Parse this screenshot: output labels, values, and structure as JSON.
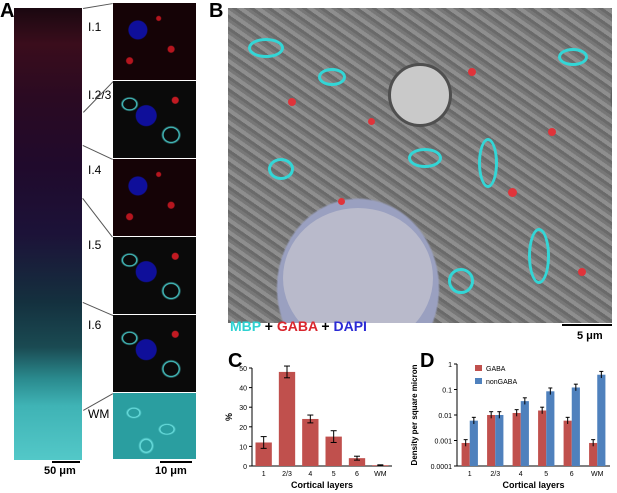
{
  "panels": {
    "A": {
      "letter": "A"
    },
    "B": {
      "letter": "B"
    },
    "C": {
      "letter": "C"
    },
    "D": {
      "letter": "D"
    }
  },
  "layers": [
    "I.1",
    "I.2/3",
    "I.4",
    "I.5",
    "I.6",
    "WM"
  ],
  "scale_bars": {
    "strip": "50 μm",
    "tiles": "10 μm",
    "panelB": "5 μm"
  },
  "stain_legend": {
    "mbp": "MBP",
    "plus1": " + ",
    "gaba": "GABA",
    "plus2": " + ",
    "dapi": "DAPI"
  },
  "colors": {
    "mbp": "#2fd1d1",
    "gaba": "#d9262e",
    "dapi": "#2a2ad4",
    "gaba_bar": "#c0504d",
    "nongaba_bar": "#4f81bd"
  },
  "chart_data": [
    {
      "type": "bar",
      "panel": "C",
      "categories": [
        "1",
        "2/3",
        "4",
        "5",
        "6",
        "WM"
      ],
      "values": [
        12,
        48,
        24,
        15,
        4,
        0.4
      ],
      "errors": [
        3,
        3,
        2,
        3,
        1,
        0.2
      ],
      "xlabel": "Cortical layers",
      "ylabel": "%",
      "ylim": [
        0,
        50
      ],
      "yticks": [
        0,
        10,
        20,
        30,
        40,
        50
      ],
      "grid": false,
      "color": "#c0504d"
    },
    {
      "type": "bar",
      "panel": "D",
      "categories": [
        "1",
        "2/3",
        "4",
        "5",
        "6",
        "WM"
      ],
      "series": [
        {
          "name": "GABA",
          "values": [
            0.0008,
            0.01,
            0.012,
            0.015,
            0.006,
            0.0008
          ],
          "color": "#c0504d"
        },
        {
          "name": "nonGABA",
          "values": [
            0.006,
            0.01,
            0.035,
            0.085,
            0.12,
            0.38
          ],
          "color": "#4f81bd"
        }
      ],
      "xlabel": "Cortical layers",
      "ylabel": "Density per square micron",
      "scale": "log",
      "ylim": [
        0.0001,
        1
      ],
      "yticks": [
        "0.0001",
        "0.001",
        "0.01",
        "0.1",
        "1"
      ],
      "legend": "top-left",
      "grid": false
    }
  ]
}
